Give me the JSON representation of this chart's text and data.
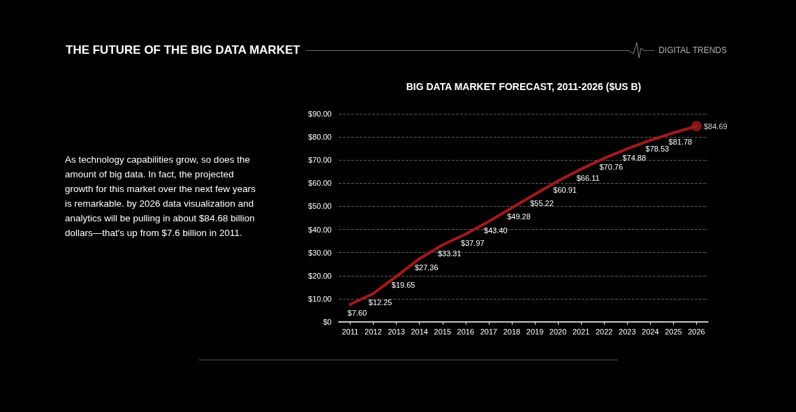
{
  "chart_data": {
    "type": "line",
    "title": "BIG DATA MARKET FORECAST, 2011-2026 ($US B)",
    "annotations": [
      "THE FUTURE OF THE BIG DATA MARKET",
      "DIGITAL TRENDS",
      "As technology capabilities grow, so does the amount of big data. In fact, the projected growth for this market over the next few years is remarkable. by 2026 data visualization and analytics will be pulling in about $84.68 billion dollars—that's up from $7.6 billion in 2011."
    ],
    "categories": [
      "2011",
      "2012",
      "2013",
      "2014",
      "2015",
      "2016",
      "2017",
      "2018",
      "2019",
      "2020",
      "2021",
      "2022",
      "2023",
      "2024",
      "2025",
      "2026"
    ],
    "series": [
      {
        "color": "#a3191b",
        "marker": "none",
        "line_style": "solid",
        "values": [
          7.6,
          12.25,
          19.65,
          27.36,
          33.31,
          37.97,
          43.4,
          49.28,
          55.22,
          60.91,
          66.11,
          70.76,
          74.88,
          78.53,
          81.78,
          84.69
        ],
        "value_labels": [
          "$7.60",
          "$12.25",
          "$19.65",
          "$27.36",
          "$33.31",
          "$37.97",
          "$43.40",
          "$49.28",
          "$55.22",
          "$60.91",
          "$66.11",
          "$70.76",
          "$74.88",
          "$78.53",
          "$81.78",
          null
        ]
      },
      {
        "type": "scatter",
        "color": "#a3191b",
        "marker": "circle",
        "values": [
          null,
          null,
          null,
          null,
          null,
          null,
          null,
          null,
          null,
          null,
          null,
          null,
          null,
          null,
          null,
          84.69
        ],
        "value_labels": [
          null,
          null,
          null,
          null,
          null,
          null,
          null,
          null,
          null,
          null,
          null,
          null,
          null,
          null,
          null,
          "$84.69"
        ]
      }
    ],
    "ylim": [
      0,
      90
    ],
    "yticks": [
      {
        "value": 0,
        "label": "$0"
      },
      {
        "value": 10,
        "label": "$10.00"
      },
      {
        "value": 20,
        "label": "$20.00"
      },
      {
        "value": 30,
        "label": "$30.00"
      },
      {
        "value": 40,
        "label": "$40.00"
      },
      {
        "value": 50,
        "label": "$50.00"
      },
      {
        "value": 60,
        "label": "$60.00"
      },
      {
        "value": 70,
        "label": "$70.00"
      },
      {
        "value": 80,
        "label": "$80.00"
      },
      {
        "value": 90,
        "label": "$90.00"
      }
    ],
    "grid": "y"
  }
}
